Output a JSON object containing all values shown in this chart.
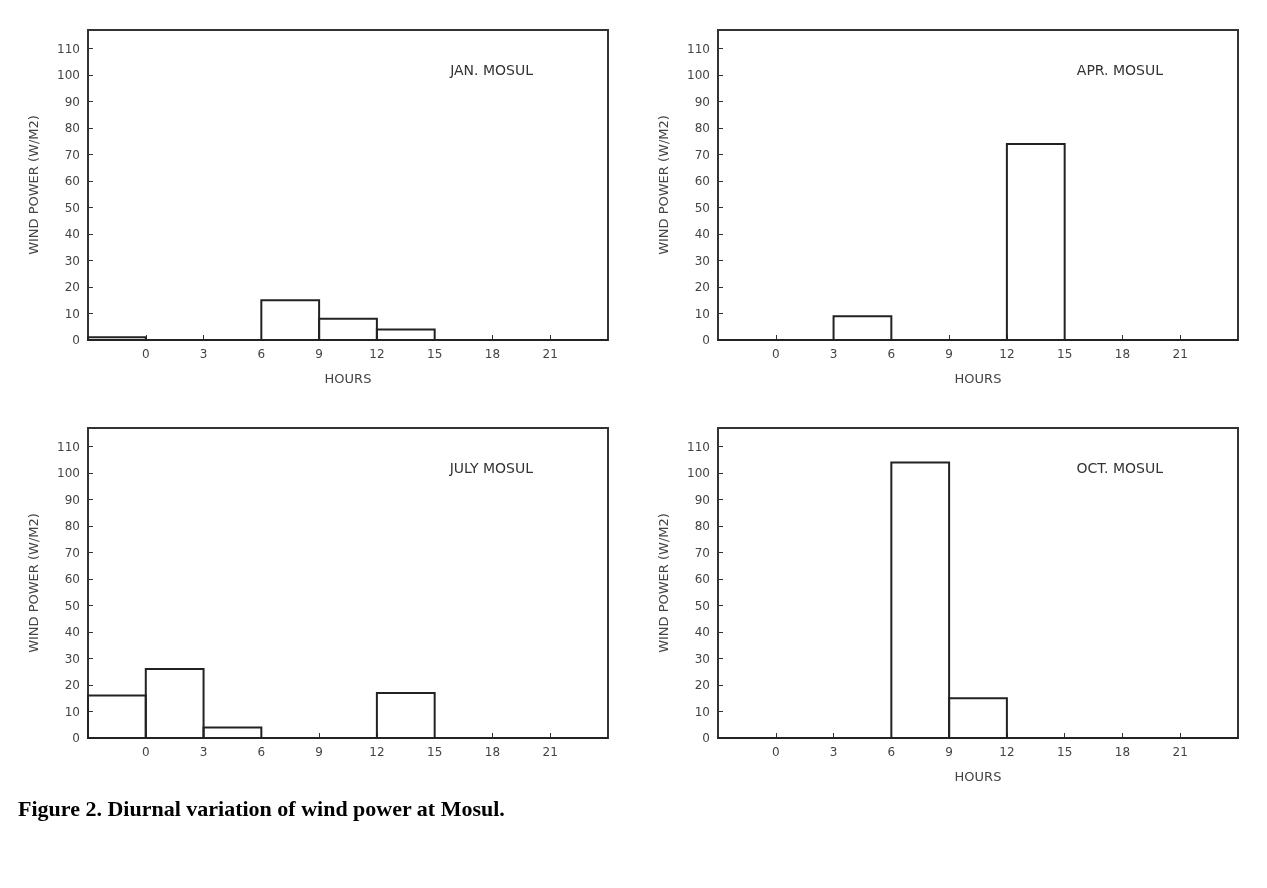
{
  "chart_data": [
    {
      "type": "histogram",
      "title": "JAN. MOSUL",
      "xlabel": "HOURS",
      "ylabel": "WIND POWER (W/M2)",
      "color": "#222222",
      "bins": [
        -3,
        0,
        3,
        6,
        9,
        12,
        15,
        18,
        21,
        24
      ],
      "values": [
        1,
        0,
        0,
        15,
        8,
        4,
        0,
        0,
        0
      ],
      "xlim": [
        -3,
        24
      ],
      "ylim": [
        0,
        117
      ],
      "xticks": [
        0,
        3,
        6,
        9,
        12,
        15,
        18,
        21
      ],
      "yticks": [
        0,
        10,
        20,
        30,
        40,
        50,
        60,
        70,
        80,
        90,
        100,
        110
      ],
      "grid": false
    },
    {
      "type": "histogram",
      "title": "APR. MOSUL",
      "xlabel": "HOURS",
      "ylabel": "WIND POWER (W/M2)",
      "color": "#222222",
      "bins": [
        -3,
        0,
        3,
        6,
        9,
        12,
        15,
        18,
        21,
        24
      ],
      "values": [
        0,
        0,
        9,
        0,
        0,
        74,
        0,
        0,
        0
      ],
      "xlim": [
        -3,
        24
      ],
      "ylim": [
        0,
        117
      ],
      "xticks": [
        0,
        3,
        6,
        9,
        12,
        15,
        18,
        21
      ],
      "yticks": [
        0,
        10,
        20,
        30,
        40,
        50,
        60,
        70,
        80,
        90,
        100,
        110
      ],
      "grid": false
    },
    {
      "type": "histogram",
      "title": "JULY MOSUL",
      "ylabel": "WIND POWER (W/M2)",
      "color": "#222222",
      "bins": [
        -3,
        0,
        3,
        6,
        9,
        12,
        15,
        18,
        21,
        24
      ],
      "values": [
        16,
        26,
        4,
        0,
        0,
        17,
        0,
        0,
        0
      ],
      "xlim": [
        -3,
        24
      ],
      "ylim": [
        0,
        117
      ],
      "xticks": [
        0,
        3,
        6,
        9,
        12,
        15,
        18,
        21
      ],
      "yticks": [
        0,
        10,
        20,
        30,
        40,
        50,
        60,
        70,
        80,
        90,
        100,
        110
      ],
      "grid": false,
      "annotations": [
        "Figure 2. Diurnal variation of wind power at Mosul."
      ]
    },
    {
      "type": "histogram",
      "title": "OCT. MOSUL",
      "xlabel": "HOURS",
      "ylabel": "WIND POWER (W/M2)",
      "color": "#222222",
      "bins": [
        -3,
        0,
        3,
        6,
        9,
        12,
        15,
        18,
        21,
        24
      ],
      "values": [
        0,
        0,
        0,
        104,
        15,
        0,
        0,
        0,
        0
      ],
      "xlim": [
        -3,
        24
      ],
      "ylim": [
        0,
        117
      ],
      "xticks": [
        0,
        3,
        6,
        9,
        12,
        15,
        18,
        21
      ],
      "yticks": [
        0,
        10,
        20,
        30,
        40,
        50,
        60,
        70,
        80,
        90,
        100,
        110
      ],
      "grid": false
    }
  ]
}
